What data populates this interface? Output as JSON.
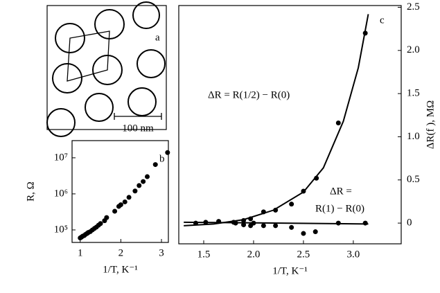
{
  "chart_data": [
    {
      "type": "image",
      "label": "a",
      "scale_bar": "100 nm"
    },
    {
      "type": "scatter",
      "label": "b",
      "xlabel": "1/T, K⁻¹",
      "ylabel": "R, Ω",
      "log_y": true,
      "xlim": [
        0.8,
        3.17
      ],
      "ylim": [
        45000,
        30000000
      ],
      "xticks": [
        1,
        2,
        3
      ],
      "yticks": [
        {
          "value": 100000,
          "label": "10⁵"
        },
        {
          "value": 1000000,
          "label": "10⁶"
        },
        {
          "value": 10000000,
          "label": "10⁷"
        }
      ],
      "series": [
        {
          "color": "#000000",
          "mode": "markers",
          "x": [
            1.0,
            1.03,
            1.06,
            1.1,
            1.13,
            1.17,
            1.2,
            1.25,
            1.3,
            1.35,
            1.4,
            1.45,
            1.5,
            1.6,
            1.65,
            1.85,
            1.95,
            2.0,
            2.1,
            2.2,
            2.35,
            2.45,
            2.55,
            2.65,
            2.85,
            3.15
          ],
          "values": [
            60000,
            63000,
            67000,
            70000,
            75000,
            80000,
            85000,
            90000,
            100000,
            110000,
            120000,
            135000,
            150000,
            180000,
            220000,
            330000,
            450000,
            500000,
            600000,
            800000,
            1200000,
            1700000,
            2200000,
            3000000,
            6500000,
            14000000
          ]
        }
      ]
    },
    {
      "type": "scatter",
      "label": "c",
      "xlabel": "1/T, K⁻¹",
      "ylabel": "ΔR(f ), MΩ",
      "y_side": "right",
      "xlim": [
        1.25,
        3.48
      ],
      "ylim": [
        -0.24,
        2.52
      ],
      "xticks": [
        1.5,
        {
          "value": 2,
          "label": "2.0"
        },
        2.5,
        {
          "value": 3,
          "label": "3.0"
        }
      ],
      "yticks": [
        0,
        0.5,
        {
          "value": 1,
          "label": "1.0"
        },
        1.5,
        {
          "value": 2,
          "label": "2.0"
        },
        2.5
      ],
      "annotations": [
        "ΔR = R(1/2) − R(0)",
        "ΔR =",
        "R(1) − R(0)"
      ],
      "series": [
        {
          "color": "#000000",
          "mode": "markers",
          "x": [
            1.42,
            1.52,
            1.65,
            1.8,
            1.9,
            1.97,
            2.1,
            2.22,
            2.38,
            2.5,
            2.63,
            2.85,
            3.12
          ],
          "values": [
            0,
            0.01,
            0.02,
            0.01,
            0.03,
            0.05,
            0.13,
            0.15,
            0.22,
            0.37,
            0.52,
            1.16,
            2.2
          ]
        },
        {
          "color": "#000000",
          "mode": "markers",
          "x": [
            1.82,
            1.9,
            1.97,
            2.0,
            2.1,
            2.22,
            2.38,
            2.5,
            2.62,
            2.85,
            3.12
          ],
          "values": [
            0,
            -0.02,
            -0.03,
            0,
            -0.03,
            -0.03,
            -0.05,
            -0.12,
            -0.1,
            0,
            0
          ]
        },
        {
          "color": "#000000",
          "mode": "line",
          "x": [
            1.3,
            1.6,
            1.9,
            2.2,
            2.5,
            2.7,
            2.9,
            3.05,
            3.15
          ],
          "values": [
            -0.03,
            -0.01,
            0.04,
            0.15,
            0.36,
            0.64,
            1.18,
            1.8,
            2.42
          ]
        },
        {
          "color": "#000000",
          "mode": "line",
          "x": [
            1.3,
            3.15
          ],
          "values": [
            0.01,
            -0.01
          ]
        }
      ]
    }
  ]
}
